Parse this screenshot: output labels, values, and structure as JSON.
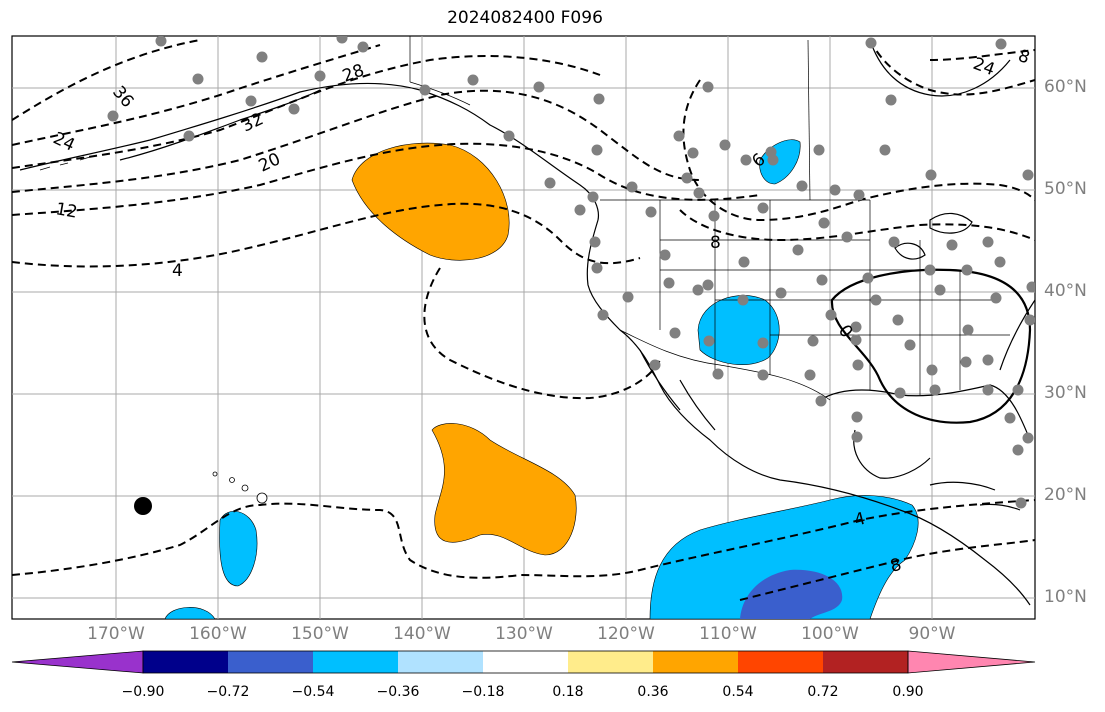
{
  "title": "2024082400 F096",
  "lat_labels": [
    "60°N",
    "50°N",
    "40°N",
    "30°N",
    "20°N",
    "10°N"
  ],
  "lon_labels": [
    "170°W",
    "160°W",
    "150°W",
    "140°W",
    "130°W",
    "120°W",
    "110°W",
    "100°W",
    "90°W"
  ],
  "contour_labels": [
    "36",
    "32",
    "28",
    "24",
    "20",
    "12",
    "4",
    "8",
    "6",
    "0",
    "4",
    "8",
    "24",
    "8"
  ],
  "colorbar": {
    "ticks": [
      "−0.90",
      "−0.72",
      "−0.54",
      "−0.36",
      "−0.18",
      "0.18",
      "0.36",
      "0.54",
      "0.72",
      "0.90"
    ],
    "colors": [
      "#9932cc",
      "#00008b",
      "#3a5fcd",
      "#00bfff",
      "#b0e2ff",
      "#ffffff",
      "#ffec8b",
      "#ffa500",
      "#ff4500",
      "#b22222",
      "#ff86b0"
    ]
  },
  "legend_colors": {
    "orange": "#ffa500",
    "blue": "#00bfff",
    "dark_blue": "#3a5fcd",
    "station_dots": "#808080"
  }
}
